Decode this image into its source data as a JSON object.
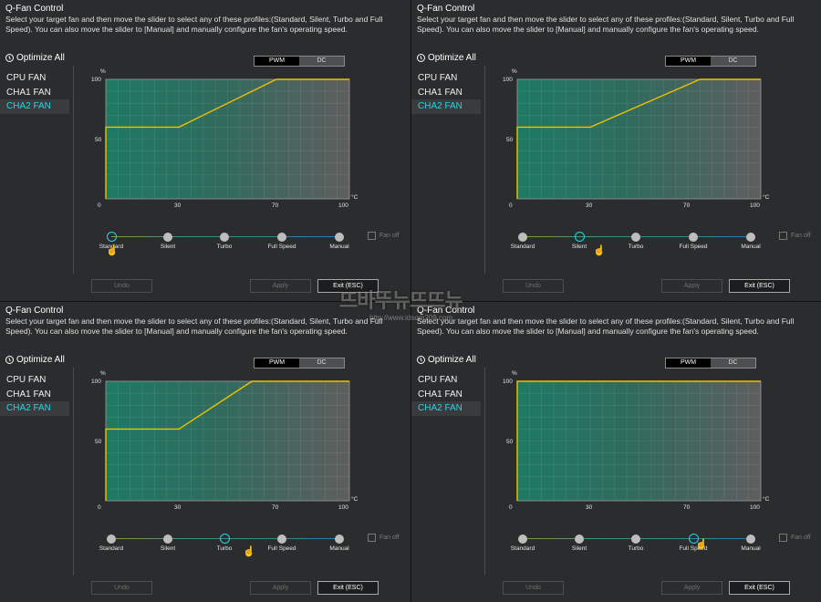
{
  "window": {
    "title": "Q-Fan Control",
    "description": "Select your target fan and then move the slider to select any of these profiles:(Standard, Silent, Turbo and Full Speed). You can also move the slider to [Manual] and manually configure the fan's operating speed.",
    "optimize_label": "Optimize All",
    "fans": [
      "CPU FAN",
      "CHA1 FAN",
      "CHA2 FAN"
    ],
    "active_fan": "CHA2 FAN",
    "mode": {
      "pwm": "PWM",
      "dc": "DC"
    },
    "y_unit": "%",
    "x_unit": "°C",
    "y_ticks": [
      "100",
      "50"
    ],
    "x_ticks": [
      "0",
      "30",
      "70",
      "100"
    ],
    "profiles": [
      "Standard",
      "Silent",
      "Turbo",
      "Full Speed",
      "Manual"
    ],
    "fan_off_label": "Fan off",
    "buttons": {
      "undo": "Undo",
      "apply": "Apply",
      "exit": "Exit (ESC)"
    },
    "colors": {
      "accent": "#27d5e6",
      "curve": "#f0c000",
      "fill_start": "#1e7a63",
      "fill_end": "#5e5e5e"
    }
  },
  "panels": [
    {
      "selected_profile": "Standard",
      "curve": [
        [
          0,
          0
        ],
        [
          0,
          60
        ],
        [
          30,
          60
        ],
        [
          70,
          100
        ],
        [
          100,
          100
        ]
      ]
    },
    {
      "selected_profile": "Silent",
      "curve": [
        [
          0,
          0
        ],
        [
          0,
          60
        ],
        [
          30,
          60
        ],
        [
          75,
          100
        ],
        [
          100,
          100
        ]
      ]
    },
    {
      "selected_profile": "Turbo",
      "curve": [
        [
          0,
          0
        ],
        [
          0,
          60
        ],
        [
          30,
          60
        ],
        [
          60,
          100
        ],
        [
          100,
          100
        ]
      ]
    },
    {
      "selected_profile": "Full Speed",
      "curve": [
        [
          0,
          0
        ],
        [
          0,
          100
        ],
        [
          100,
          100
        ]
      ]
    }
  ],
  "watermark": {
    "text": "뜨바뚜뉴뜨뜨뉴",
    "url": "http://www.idsom209.com"
  }
}
